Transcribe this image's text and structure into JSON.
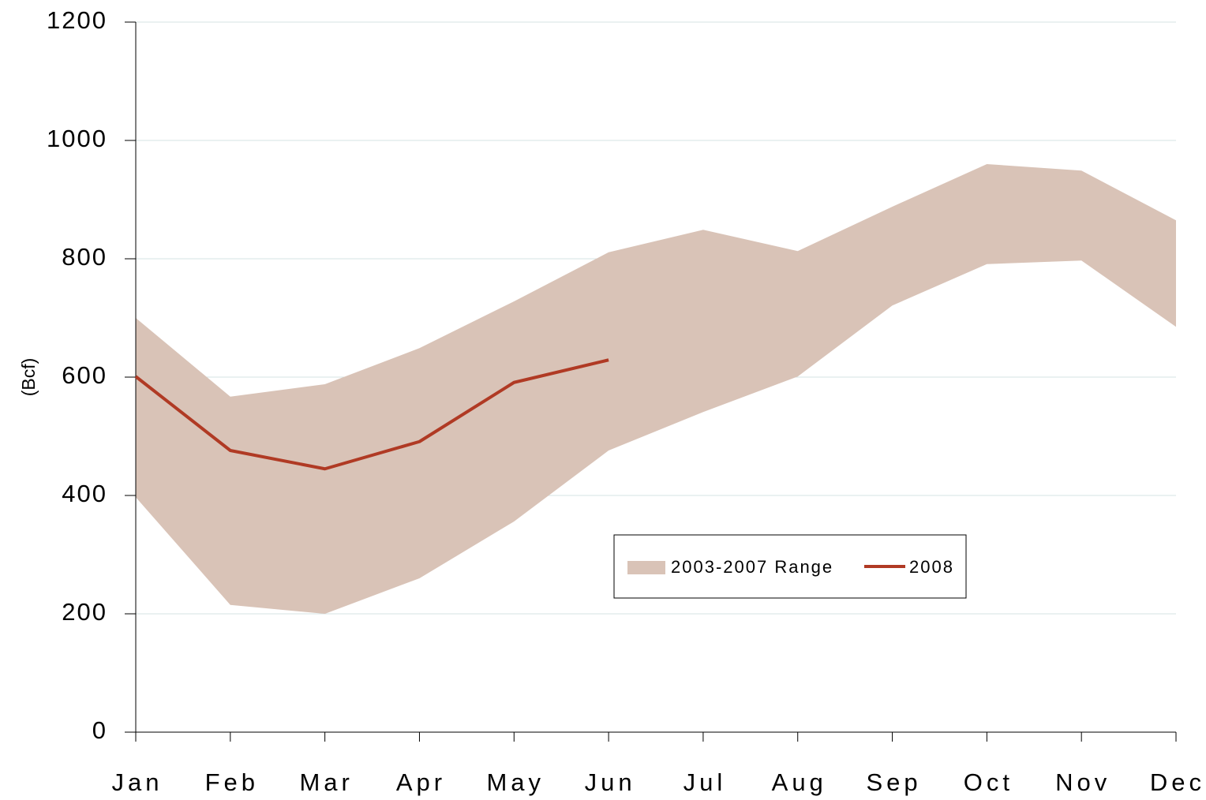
{
  "chart_data": {
    "type": "line",
    "y_label": "(Bcf)",
    "categories": [
      "Jan",
      "Feb",
      "Mar",
      "Apr",
      "May",
      "Jun",
      "Jul",
      "Aug",
      "Sep",
      "Oct",
      "Nov",
      "Dec"
    ],
    "band": {
      "name": "2003-2007 Range",
      "color": "#d9c3b7",
      "low": [
        397,
        215,
        200,
        260,
        356,
        476,
        541,
        601,
        721,
        791,
        797,
        685
      ],
      "high": [
        700,
        567,
        588,
        649,
        728,
        811,
        849,
        813,
        888,
        960,
        949,
        865
      ]
    },
    "series": [
      {
        "name": "2008",
        "color": "#b03a24",
        "values": [
          601,
          476,
          445,
          491,
          591,
          629,
          null,
          null,
          null,
          null,
          null,
          null
        ]
      }
    ],
    "ylim": [
      0,
      1200
    ],
    "yticks": [
      0,
      200,
      400,
      600,
      800,
      1000,
      1200
    ],
    "grid": true
  }
}
